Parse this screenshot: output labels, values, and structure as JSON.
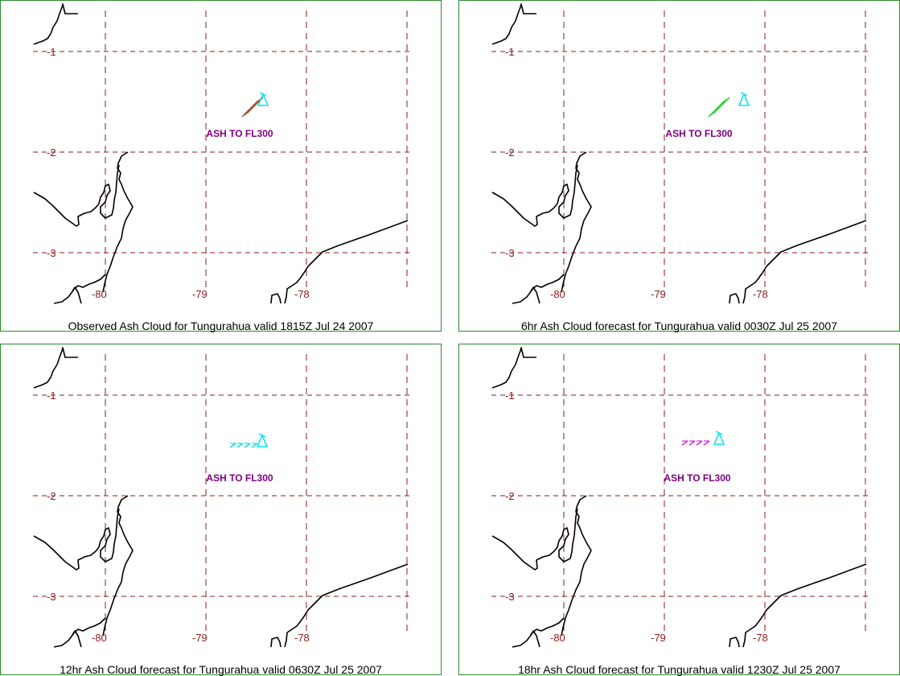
{
  "colors": {
    "frame": "#2e8b2e",
    "grid": "#8b1a1a",
    "coast": "#000000",
    "label": "#800080"
  },
  "axes": {
    "lat_labels": [
      "-1",
      "-2",
      "-3"
    ],
    "lon_labels": [
      "-80",
      "-79",
      "-78"
    ]
  },
  "panels": [
    {
      "caption": "Observed Ash Cloud for Tungurahua valid 1815Z Jul 24 2007",
      "label": "ASH TO FL300",
      "cloud_color": "#a0522d",
      "outline_color": "#00e5ee"
    },
    {
      "caption": "6hr Ash Cloud forecast for Tungurahua valid 0030Z Jul 25 2007",
      "label": "ASH TO FL300",
      "cloud_color": "#32cd32",
      "outline_color": "#00e5ee"
    },
    {
      "caption": "12hr Ash Cloud forecast for Tungurahua valid 0630Z Jul 25 2007",
      "label": "ASH TO FL300",
      "cloud_color": "#00e5ee",
      "outline_color": "#00e5ee"
    },
    {
      "caption": "18hr Ash Cloud forecast for Tungurahua valid 1230Z Jul 25 2007",
      "label": "ASH TO FL300",
      "cloud_color": "#e020e0",
      "outline_color": "#00e5ee"
    }
  ]
}
